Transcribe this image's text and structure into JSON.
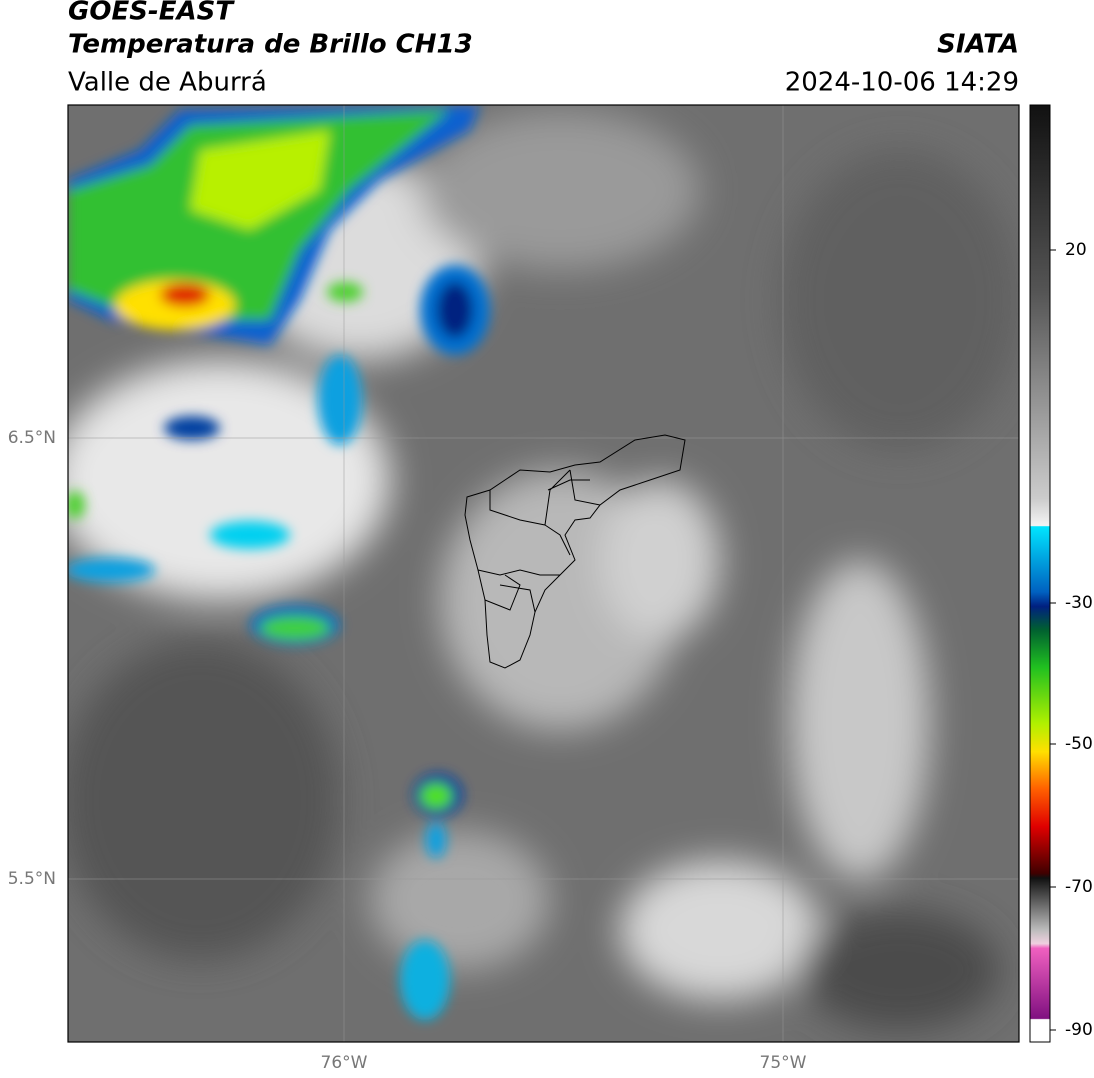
{
  "header": {
    "title": "GOES-EAST",
    "subtitle": "Temperatura de Brillo CH13",
    "region": "Valle de Aburrá",
    "agency": "SIATA",
    "datetime": "2024-10-06 14:29"
  },
  "map": {
    "lat_labels": [
      "6.5°N",
      "5.5°N"
    ],
    "lon_labels": [
      "76°W",
      "75°W"
    ]
  },
  "colorbar": {
    "ticks": [
      "20",
      "-30",
      "-50",
      "-70",
      "-90"
    ]
  }
}
